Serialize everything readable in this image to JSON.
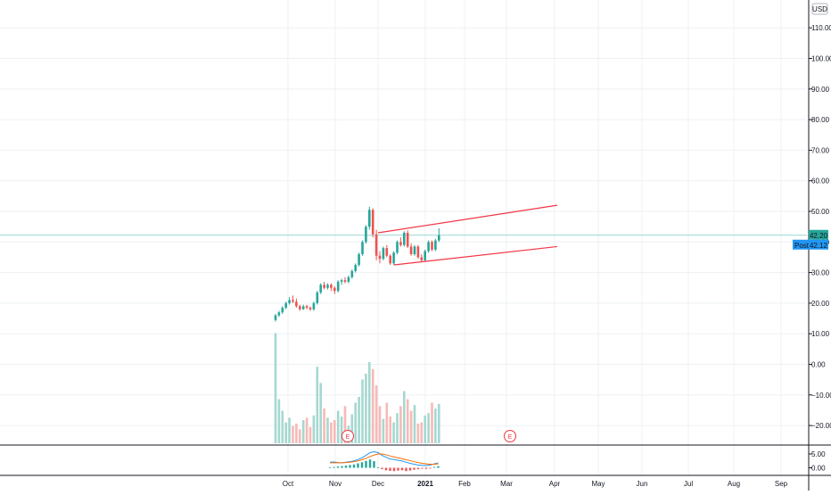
{
  "chart_data": {
    "type": "candlestick",
    "currency": "USD",
    "price_axis": {
      "ticks": [
        "110.00",
        "100.00",
        "90.00",
        "80.00",
        "70.00",
        "60.00",
        "50.00",
        "40.00",
        "30.00",
        "20.00",
        "10.00",
        "0.00",
        "−10.00",
        "−20.00"
      ],
      "values": [
        110,
        100,
        90,
        80,
        70,
        60,
        50,
        40,
        30,
        20,
        10,
        0,
        -10,
        -20
      ]
    },
    "macd_axis": {
      "ticks": [
        "5.00",
        "0.00"
      ],
      "values": [
        5,
        0
      ]
    },
    "time_axis": {
      "labels": [
        "Oct",
        "Nov",
        "Dec",
        "2021",
        "Feb",
        "Mar",
        "Apr",
        "May",
        "Jun",
        "Jul",
        "Aug",
        "Sep"
      ]
    },
    "last_price": {
      "label": "42.20",
      "value": 42.2,
      "color": "#26a69a"
    },
    "post_price": {
      "tag": "Post",
      "label": "42.12",
      "value": 42.12,
      "color": "#2196f3"
    },
    "candles": [
      [
        14.5,
        16.5,
        14.0,
        16.0
      ],
      [
        16.0,
        17.5,
        15.5,
        17.0
      ],
      [
        17.0,
        19.0,
        16.5,
        18.5
      ],
      [
        18.5,
        20.5,
        18.0,
        20.0
      ],
      [
        20.0,
        22.0,
        19.5,
        21.0
      ],
      [
        21.0,
        22.5,
        20.0,
        20.5
      ],
      [
        20.5,
        21.5,
        18.5,
        19.0
      ],
      [
        19.0,
        19.5,
        17.5,
        18.0
      ],
      [
        18.0,
        19.5,
        17.8,
        19.0
      ],
      [
        19.0,
        19.5,
        18.0,
        18.5
      ],
      [
        18.5,
        19.0,
        17.5,
        18.0
      ],
      [
        18.0,
        20.5,
        17.5,
        20.0
      ],
      [
        20.0,
        24.0,
        19.5,
        23.5
      ],
      [
        23.5,
        26.5,
        23.0,
        26.0
      ],
      [
        26.0,
        27.0,
        24.5,
        25.0
      ],
      [
        25.0,
        26.5,
        24.5,
        26.0
      ],
      [
        26.0,
        26.5,
        24.0,
        25.0
      ],
      [
        25.0,
        25.5,
        23.0,
        24.0
      ],
      [
        24.0,
        27.5,
        23.5,
        27.0
      ],
      [
        27.0,
        28.0,
        26.0,
        27.5
      ],
      [
        27.5,
        28.5,
        26.5,
        27.0
      ],
      [
        27.0,
        29.0,
        26.5,
        28.5
      ],
      [
        28.5,
        31.0,
        28.0,
        30.5
      ],
      [
        30.5,
        33.0,
        30.0,
        32.5
      ],
      [
        32.5,
        36.5,
        32.0,
        36.0
      ],
      [
        36.0,
        40.5,
        35.5,
        40.0
      ],
      [
        40.0,
        45.5,
        39.5,
        45.0
      ],
      [
        45.0,
        51.5,
        44.0,
        50.5
      ],
      [
        50.5,
        51.0,
        41.5,
        42.5
      ],
      [
        42.5,
        44.0,
        34.0,
        35.5
      ],
      [
        35.5,
        37.0,
        33.0,
        34.5
      ],
      [
        34.5,
        38.5,
        34.0,
        38.0
      ],
      [
        38.0,
        39.0,
        35.0,
        35.5
      ],
      [
        35.5,
        36.0,
        32.5,
        33.0
      ],
      [
        33.0,
        37.0,
        32.5,
        36.5
      ],
      [
        36.5,
        40.5,
        36.0,
        40.0
      ],
      [
        40.0,
        41.5,
        38.5,
        39.0
      ],
      [
        39.0,
        43.5,
        38.5,
        43.0
      ],
      [
        43.0,
        43.8,
        38.0,
        38.5
      ],
      [
        38.5,
        39.5,
        35.5,
        36.0
      ],
      [
        36.0,
        39.0,
        35.5,
        38.5
      ],
      [
        38.5,
        39.0,
        34.5,
        35.0
      ],
      [
        35.0,
        36.0,
        33.5,
        34.0
      ],
      [
        34.0,
        37.5,
        33.5,
        37.0
      ],
      [
        37.0,
        40.5,
        36.5,
        40.0
      ],
      [
        40.0,
        40.5,
        37.0,
        37.5
      ],
      [
        37.5,
        41.0,
        37.0,
        40.5
      ],
      [
        40.5,
        44.5,
        40.0,
        42.2
      ]
    ],
    "volume": [
      95,
      38,
      28,
      18,
      22,
      15,
      17,
      12,
      20,
      22,
      14,
      24,
      66,
      52,
      30,
      22,
      18,
      20,
      28,
      23,
      32,
      15,
      25,
      35,
      40,
      55,
      60,
      70,
      64,
      50,
      32,
      21,
      35,
      23,
      18,
      26,
      32,
      45,
      38,
      28,
      33,
      17,
      18,
      24,
      26,
      35,
      30,
      34
    ],
    "macd": {
      "histogram": [
        0.2,
        0.3,
        0.5,
        0.6,
        0.8,
        1.0,
        1.2,
        1.6,
        2.0,
        2.5,
        3.0,
        2.4,
        0.2,
        -0.5,
        -0.9,
        -1.1,
        -1.2,
        -1.0,
        -0.9,
        -1.2,
        -1.0,
        -0.7,
        -0.5,
        -0.3,
        -0.4,
        -0.2,
        0.3,
        0.6
      ],
      "macd_line": [
        2.0,
        2.1,
        1.9,
        1.8,
        2.0,
        2.2,
        2.5,
        3.0,
        3.6,
        4.5,
        5.5,
        5.8,
        5.5,
        4.5,
        3.8,
        3.2,
        3.0,
        2.7,
        2.5,
        2.0,
        1.6,
        1.3,
        1.0,
        0.9,
        0.8,
        1.0,
        1.4,
        1.8
      ],
      "signal_line": [
        1.8,
        1.8,
        1.8,
        1.8,
        1.9,
        2.0,
        2.2,
        2.5,
        2.9,
        3.4,
        4.1,
        4.6,
        5.0,
        5.0,
        4.7,
        4.3,
        3.9,
        3.6,
        3.3,
        2.9,
        2.6,
        2.2,
        1.9,
        1.6,
        1.4,
        1.3,
        1.3,
        1.4
      ]
    },
    "channel": {
      "upper": {
        "from": {
          "date": "Dec",
          "value": 43.0
        },
        "to": {
          "date": "Apr",
          "value": 52.0
        }
      },
      "lower": {
        "from": {
          "date": "Dec",
          "value": 32.5
        },
        "to": {
          "date": "Apr",
          "value": 38.5
        }
      }
    },
    "event_markers": [
      {
        "label": "E"
      },
      {
        "label": "E"
      }
    ],
    "grid": true,
    "colors": {
      "up": "#26a69a",
      "down": "#ef5350",
      "channel": "#f23645",
      "macd": "#2196f3",
      "signal": "#ff6d00",
      "grid": "#eef0f3"
    }
  }
}
